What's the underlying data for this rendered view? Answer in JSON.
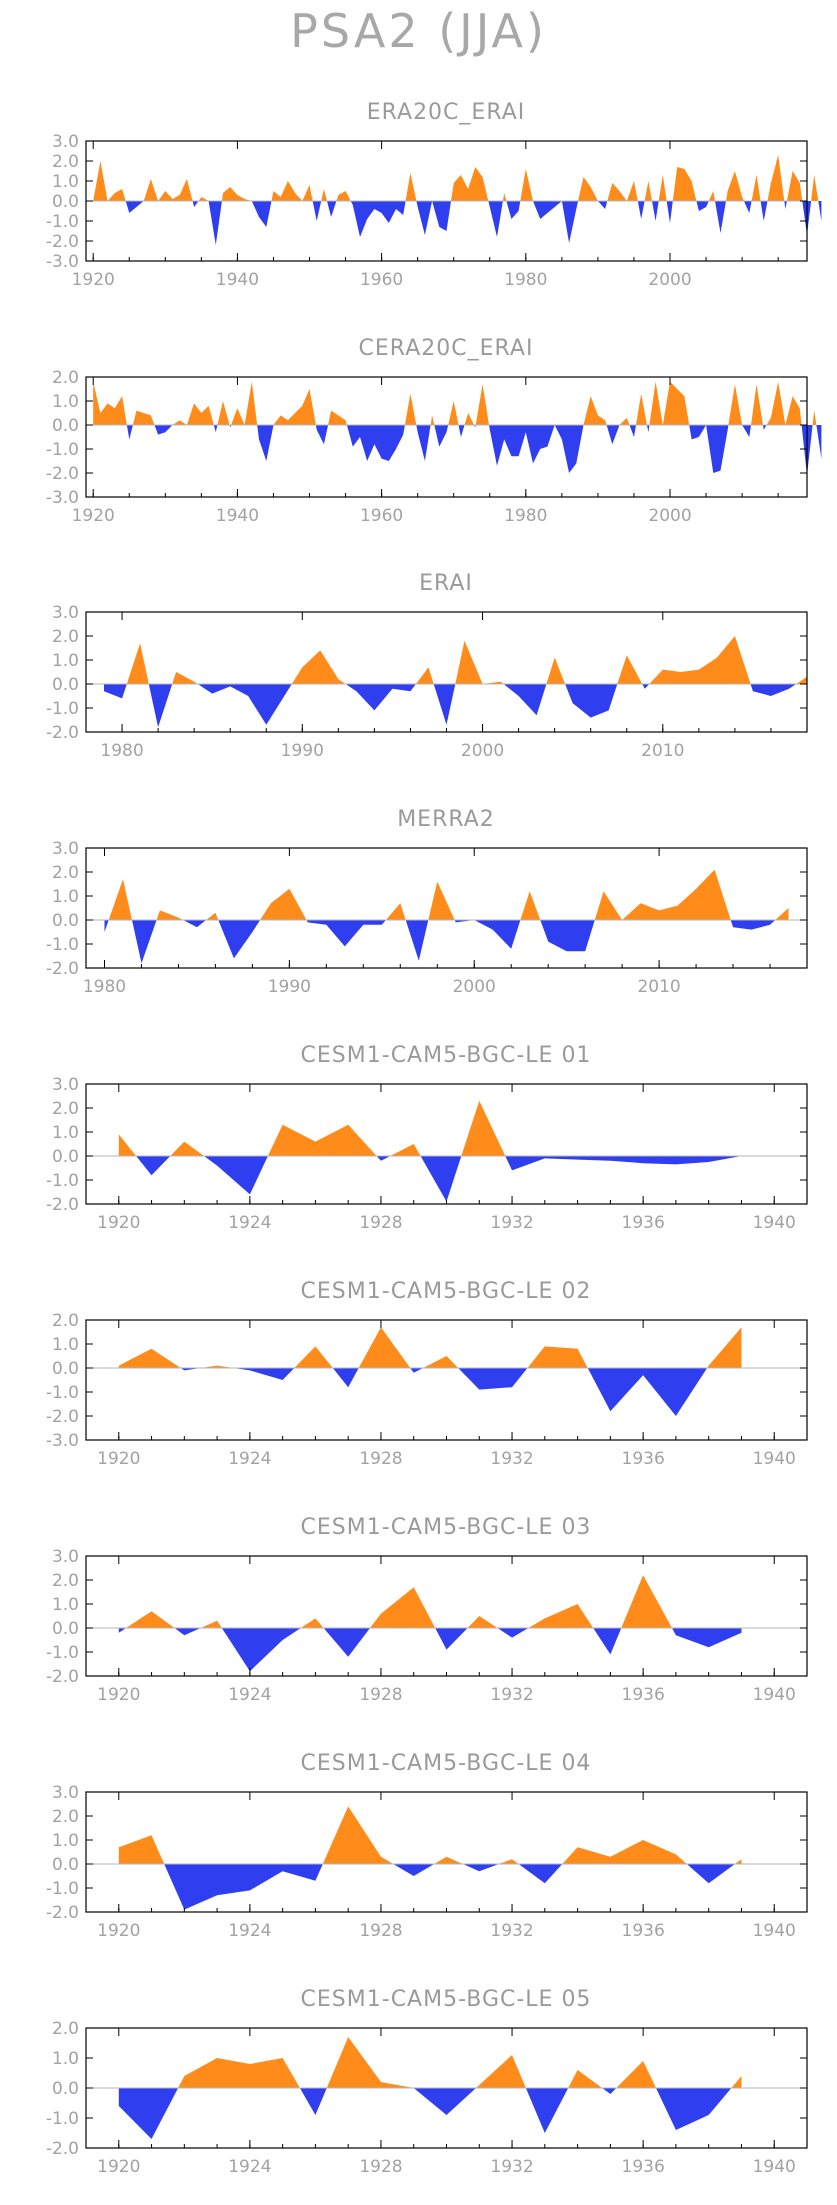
{
  "page_title": "PSA2 (JJA)",
  "colors": {
    "positive": "#ff8c1a",
    "negative": "#2f3ff0",
    "frame": "#000000",
    "zero_line": "#b4b4b4",
    "text": "#a0a0a0"
  },
  "chart_data": [
    {
      "type": "area",
      "title": "ERA20C_ERAI",
      "xlabel": "",
      "ylabel": "",
      "xlim": [
        1919,
        2019
      ],
      "ylim": [
        -3.0,
        3.0
      ],
      "yticks": [
        "3.0",
        "2.0",
        "1.0",
        "0.0",
        "-1.0",
        "-2.0",
        "-3.0"
      ],
      "xticks": [
        "1920",
        "1940",
        "1960",
        "1980",
        "2000"
      ],
      "x_start": 1920,
      "values": [
        0.0,
        2.0,
        0.0,
        0.4,
        0.6,
        -0.6,
        -0.3,
        0.0,
        1.1,
        0.0,
        0.5,
        0.1,
        0.3,
        1.1,
        -0.3,
        0.2,
        0.0,
        -2.2,
        0.4,
        0.7,
        0.3,
        0.1,
        0.0,
        -0.8,
        -1.3,
        0.5,
        0.2,
        1.0,
        0.4,
        0.0,
        0.8,
        -1.0,
        0.6,
        -0.8,
        0.3,
        0.5,
        -0.2,
        -1.8,
        -0.9,
        -0.4,
        -0.6,
        -1.1,
        -0.4,
        -0.7,
        1.4,
        -0.3,
        -1.7,
        0.0,
        -1.3,
        -1.5,
        0.9,
        1.3,
        0.6,
        1.7,
        1.2,
        -0.3,
        -1.8,
        0.4,
        -0.9,
        -0.5,
        1.6,
        0.0,
        -0.9,
        -0.6,
        -0.3,
        0.0,
        -2.1,
        -0.4,
        1.2,
        0.7,
        0.0,
        -0.4,
        0.9,
        0.5,
        0.0,
        1.0,
        -0.9,
        1.0,
        -1.0,
        1.3,
        -1.1,
        1.7,
        1.6,
        1.0,
        -0.5,
        -0.3,
        0.5,
        -1.6,
        0.5,
        1.5,
        0.2,
        -0.6,
        1.3,
        -1.0,
        0.9,
        2.3,
        -0.4,
        1.5,
        0.9,
        -1.7,
        1.3,
        -1.0
      ]
    },
    {
      "type": "area",
      "title": "CERA20C_ERAI",
      "xlabel": "",
      "ylabel": "",
      "xlim": [
        1919,
        2019
      ],
      "ylim": [
        -3.0,
        2.0
      ],
      "yticks": [
        "2.0",
        "1.0",
        "0.0",
        "-1.0",
        "-2.0",
        "-3.0"
      ],
      "xticks": [
        "1920",
        "1940",
        "1960",
        "1980",
        "2000"
      ],
      "x_start": 1920,
      "values": [
        1.8,
        0.5,
        0.9,
        0.7,
        1.2,
        -0.6,
        0.6,
        0.5,
        0.4,
        -0.4,
        -0.3,
        0.0,
        0.2,
        0.0,
        0.9,
        0.5,
        0.8,
        -0.3,
        1.0,
        -0.1,
        0.7,
        0.0,
        1.8,
        -0.6,
        -1.5,
        0.0,
        0.4,
        0.2,
        0.5,
        0.8,
        1.5,
        -0.2,
        -0.8,
        0.6,
        0.4,
        0.2,
        -0.9,
        -0.5,
        -1.5,
        -0.8,
        -1.4,
        -1.5,
        -1.0,
        -0.4,
        1.3,
        -0.3,
        -1.5,
        0.4,
        -0.9,
        -0.3,
        1.0,
        -0.5,
        0.5,
        -0.1,
        1.7,
        -0.2,
        -1.7,
        -0.6,
        -1.3,
        -1.3,
        -0.3,
        -1.6,
        -1.0,
        -0.9,
        0.0,
        -0.6,
        -2.0,
        -1.6,
        0.0,
        1.2,
        0.4,
        0.2,
        -0.8,
        0.0,
        0.3,
        -0.5,
        1.3,
        -0.3,
        1.8,
        0.0,
        1.8,
        1.5,
        1.2,
        -0.6,
        -0.5,
        0.0,
        -2.0,
        -1.9,
        -0.2,
        1.7,
        0.0,
        -0.5,
        1.7,
        -0.2,
        0.3,
        1.8,
        0.0,
        1.2,
        0.7,
        -2.1,
        0.6,
        -1.4
      ]
    },
    {
      "type": "area",
      "title": "ERAI",
      "xlabel": "",
      "ylabel": "",
      "xlim": [
        1978,
        2018
      ],
      "ylim": [
        -2.0,
        3.0
      ],
      "yticks": [
        "3.0",
        "2.0",
        "1.0",
        "0.0",
        "-1.0",
        "-2.0"
      ],
      "xticks": [
        "1980",
        "1990",
        "2000",
        "2010"
      ],
      "x_start": 1979,
      "values": [
        -0.3,
        -0.6,
        1.7,
        -1.8,
        0.5,
        0.1,
        -0.4,
        -0.1,
        -0.5,
        -1.7,
        -0.5,
        0.7,
        1.4,
        0.2,
        -0.3,
        -1.1,
        -0.2,
        -0.3,
        0.7,
        -1.7,
        1.8,
        0.0,
        0.1,
        -0.5,
        -1.3,
        1.1,
        -0.8,
        -1.4,
        -1.1,
        1.2,
        -0.2,
        0.6,
        0.5,
        0.6,
        1.1,
        2.0,
        -0.3,
        -0.5,
        -0.2,
        0.3
      ]
    },
    {
      "type": "area",
      "title": "MERRA2",
      "xlabel": "",
      "ylabel": "",
      "xlim": [
        1979,
        2018
      ],
      "ylim": [
        -2.0,
        3.0
      ],
      "yticks": [
        "3.0",
        "2.0",
        "1.0",
        "0.0",
        "-1.0",
        "-2.0"
      ],
      "xticks": [
        "1980",
        "1990",
        "2000",
        "2010"
      ],
      "x_start": 1980,
      "values": [
        -0.5,
        1.7,
        -1.8,
        0.4,
        0.1,
        -0.3,
        0.3,
        -1.6,
        -0.5,
        0.7,
        1.3,
        -0.1,
        -0.2,
        -1.1,
        -0.2,
        -0.2,
        0.7,
        -1.7,
        1.6,
        -0.1,
        0.0,
        -0.4,
        -1.2,
        1.2,
        -0.9,
        -1.3,
        -1.3,
        1.2,
        0.0,
        0.7,
        0.4,
        0.6,
        1.3,
        2.1,
        -0.3,
        -0.4,
        -0.2,
        0.5
      ]
    },
    {
      "type": "area",
      "title": "CESM1-CAM5-BGC-LE 01",
      "xlabel": "",
      "ylabel": "",
      "xlim": [
        1919,
        1941
      ],
      "ylim": [
        -2.0,
        3.0
      ],
      "yticks": [
        "3.0",
        "2.0",
        "1.0",
        "0.0",
        "-1.0",
        "-2.0"
      ],
      "xticks": [
        "1920",
        "1924",
        "1928",
        "1932",
        "1936",
        "1940"
      ],
      "x_start": 1920,
      "values": [
        0.9,
        -0.8,
        0.6,
        -0.4,
        -1.6,
        1.3,
        0.6,
        1.3,
        -0.2,
        0.5,
        -1.9,
        2.3,
        -0.6,
        -0.1,
        -0.15,
        -0.2,
        -0.3,
        -0.35,
        -0.25,
        0.0
      ]
    },
    {
      "type": "area",
      "title": "CESM1-CAM5-BGC-LE 02",
      "xlabel": "",
      "ylabel": "",
      "xlim": [
        1919,
        1941
      ],
      "ylim": [
        -3.0,
        2.0
      ],
      "yticks": [
        "2.0",
        "1.0",
        "0.0",
        "-1.0",
        "-2.0",
        "-3.0"
      ],
      "xticks": [
        "1920",
        "1924",
        "1928",
        "1932",
        "1936",
        "1940"
      ],
      "x_start": 1920,
      "values": [
        0.1,
        0.8,
        -0.1,
        0.1,
        -0.1,
        -0.5,
        0.9,
        -0.8,
        1.7,
        -0.2,
        0.5,
        -0.9,
        -0.8,
        0.9,
        0.8,
        -1.8,
        -0.3,
        -2.0,
        0.1,
        1.7
      ]
    },
    {
      "type": "area",
      "title": "CESM1-CAM5-BGC-LE 03",
      "xlabel": "",
      "ylabel": "",
      "xlim": [
        1919,
        1941
      ],
      "ylim": [
        -2.0,
        3.0
      ],
      "yticks": [
        "3.0",
        "2.0",
        "1.0",
        "0.0",
        "-1.0",
        "-2.0"
      ],
      "xticks": [
        "1920",
        "1924",
        "1928",
        "1932",
        "1936",
        "1940"
      ],
      "x_start": 1920,
      "values": [
        -0.2,
        0.7,
        -0.3,
        0.3,
        -1.8,
        -0.5,
        0.4,
        -1.2,
        0.6,
        1.7,
        -0.9,
        0.5,
        -0.4,
        0.4,
        1.0,
        -1.1,
        2.2,
        -0.3,
        -0.8,
        -0.2
      ]
    },
    {
      "type": "area",
      "title": "CESM1-CAM5-BGC-LE 04",
      "xlabel": "",
      "ylabel": "",
      "xlim": [
        1919,
        1941
      ],
      "ylim": [
        -2.0,
        3.0
      ],
      "yticks": [
        "3.0",
        "2.0",
        "1.0",
        "0.0",
        "-1.0",
        "-2.0"
      ],
      "xticks": [
        "1920",
        "1924",
        "1928",
        "1932",
        "1936",
        "1940"
      ],
      "x_start": 1920,
      "values": [
        0.7,
        1.2,
        -1.9,
        -1.3,
        -1.1,
        -0.3,
        -0.7,
        2.4,
        0.3,
        -0.5,
        0.3,
        -0.3,
        0.2,
        -0.8,
        0.7,
        0.3,
        1.0,
        0.4,
        -0.8,
        0.2
      ]
    },
    {
      "type": "area",
      "title": "CESM1-CAM5-BGC-LE 05",
      "xlabel": "",
      "ylabel": "",
      "xlim": [
        1919,
        1941
      ],
      "ylim": [
        -2.0,
        2.0
      ],
      "yticks": [
        "2.0",
        "1.0",
        "0.0",
        "-1.0",
        "-2.0"
      ],
      "xticks": [
        "1920",
        "1924",
        "1928",
        "1932",
        "1936",
        "1940"
      ],
      "x_start": 1920,
      "values": [
        -0.6,
        -1.7,
        0.4,
        1.0,
        0.8,
        1.0,
        -0.9,
        1.7,
        0.2,
        0.0,
        -0.9,
        0.1,
        1.1,
        -1.5,
        0.6,
        -0.2,
        0.9,
        -1.4,
        -0.9,
        0.4
      ]
    }
  ]
}
